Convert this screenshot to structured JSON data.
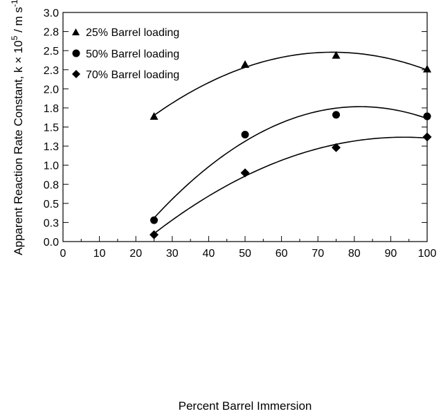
{
  "chart_data": {
    "type": "scatter",
    "xlabel": "Percent Barrel Immersion",
    "ylabel": {
      "main": "Apparent Reaction Rate Constant, k × 10",
      "exp1": "5",
      "mid": " / m s",
      "exp2": "-1"
    },
    "xlim": [
      0,
      100
    ],
    "ylim": [
      0,
      3.0
    ],
    "x_ticks": [
      0,
      10,
      20,
      30,
      40,
      50,
      60,
      70,
      80,
      90,
      100
    ],
    "y_ticks": [
      {
        "value": 0.0,
        "label": "0.0"
      },
      {
        "value": 0.25,
        "label": "0.3"
      },
      {
        "value": 0.5,
        "label": "0.5"
      },
      {
        "value": 0.75,
        "label": "0.8"
      },
      {
        "value": 1.0,
        "label": "1.0"
      },
      {
        "value": 1.25,
        "label": "1.3"
      },
      {
        "value": 1.5,
        "label": "1.5"
      },
      {
        "value": 1.75,
        "label": "1.8"
      },
      {
        "value": 2.0,
        "label": "2.0"
      },
      {
        "value": 2.25,
        "label": "2.3"
      },
      {
        "value": 2.5,
        "label": "2.5"
      },
      {
        "value": 2.75,
        "label": "2.8"
      },
      {
        "value": 3.0,
        "label": "3.0"
      }
    ],
    "grid": false,
    "legend_position": "top-left",
    "series": [
      {
        "name": "25% Barrel loading",
        "marker": "triangle",
        "x": [
          25,
          50,
          75,
          100
        ],
        "y": [
          1.64,
          2.32,
          2.44,
          2.26
        ],
        "fit_x_range": [
          25,
          100
        ]
      },
      {
        "name": "50%  Barrel loading",
        "marker": "circle",
        "x": [
          25,
          50,
          75,
          100
        ],
        "y": [
          0.28,
          1.4,
          1.66,
          1.64
        ],
        "fit_x_range": [
          25,
          100
        ]
      },
      {
        "name": "70%  Barrel loading",
        "marker": "diamond",
        "x": [
          25,
          50,
          75,
          100
        ],
        "y": [
          0.09,
          0.9,
          1.23,
          1.37
        ],
        "fit_x_range": [
          25,
          100
        ]
      }
    ]
  }
}
